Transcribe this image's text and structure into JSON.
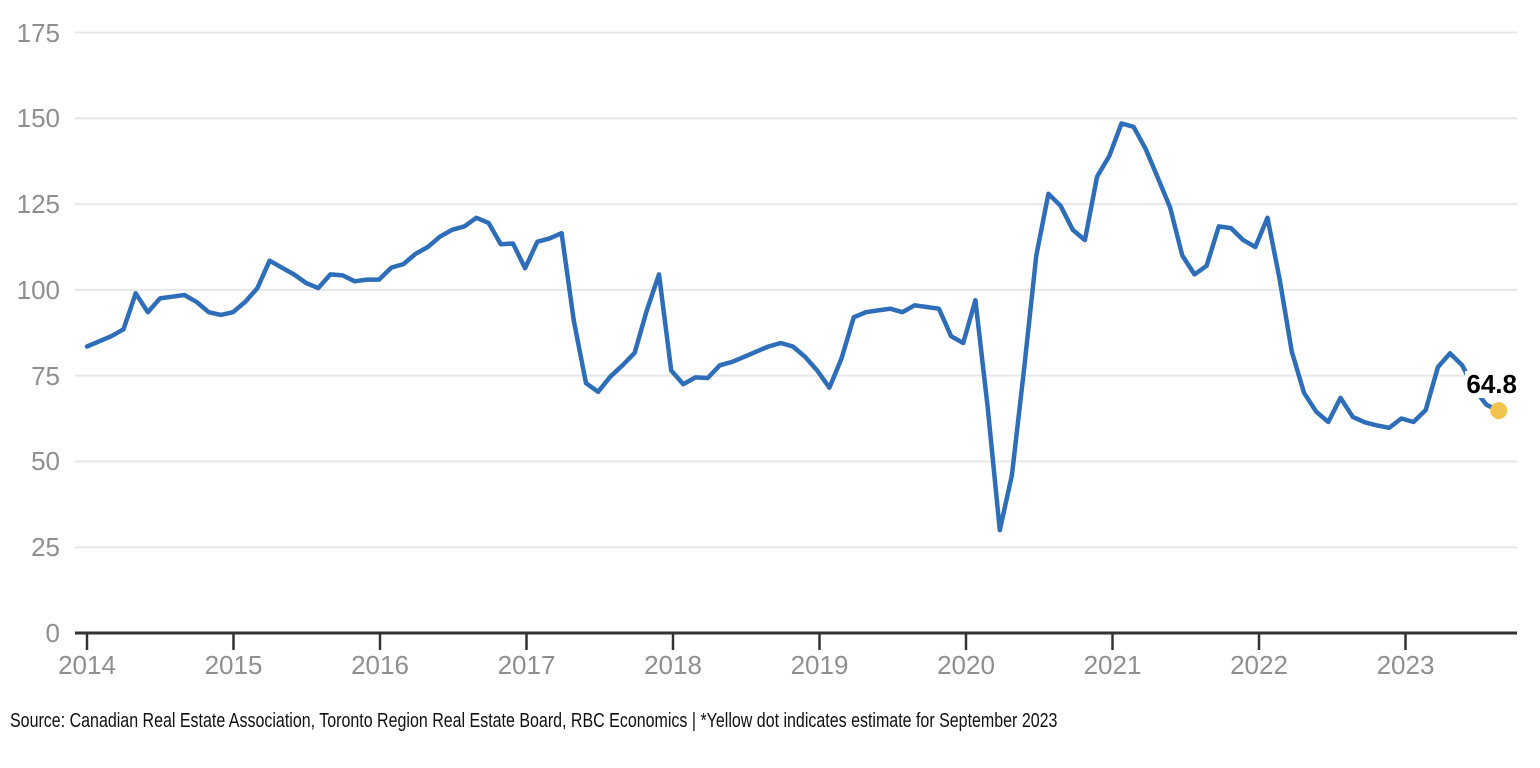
{
  "chart_data": {
    "type": "line",
    "title": "",
    "x_axis": {
      "tick_labels": [
        "2014",
        "2015",
        "2016",
        "2017",
        "2018",
        "2019",
        "2020",
        "2021",
        "2022",
        "2023"
      ],
      "frequency": "monthly",
      "start": "2014-01",
      "end": "2023-09"
    },
    "y_axis": {
      "tick_labels": [
        "175",
        "150",
        "125",
        "100",
        "75",
        "50",
        "25",
        "0"
      ],
      "ylim": [
        0,
        175
      ]
    },
    "grid": "horizontal",
    "legend": "none",
    "values": [
      83.5,
      85,
      86.5,
      88.5,
      99,
      93.5,
      97.5,
      98,
      98.5,
      96.5,
      93.5,
      92.7,
      93.5,
      96.5,
      100.5,
      108.5,
      106.5,
      104.5,
      102,
      100.5,
      104.5,
      104.2,
      102.5,
      103,
      103,
      106.5,
      107.5,
      110.5,
      112.5,
      115.5,
      117.5,
      118.5,
      121,
      119.5,
      113.3,
      113.5,
      106.3,
      114,
      115,
      116.5,
      91,
      72.8,
      70.3,
      74.7,
      78,
      81.6,
      94,
      104.5,
      76.5,
      72.5,
      74.5,
      74.3,
      78,
      79,
      80.5,
      82,
      83.5,
      84.5,
      83.5,
      80.5,
      76.5,
      71.5,
      80,
      92,
      93.5,
      94,
      94.5,
      93.5,
      95.5,
      95,
      94.5,
      86.5,
      84.5,
      97,
      66,
      30,
      46,
      77,
      110,
      128,
      124.5,
      117.5,
      114.5,
      133,
      139,
      148.5,
      147.5,
      141,
      132.5,
      124,
      110,
      104.5,
      107,
      118.5,
      118,
      114.5,
      112.5,
      121,
      103,
      82,
      70,
      64.5,
      61.5,
      68.5,
      63,
      61.4,
      60.5,
      59.8,
      62.5,
      61.5,
      65,
      77.5,
      81.5,
      78,
      71,
      66.5,
      64.8
    ],
    "annotation": {
      "label": "64.8",
      "value": 64.8,
      "applies_to": "September 2023",
      "marker": "yellow-dot"
    },
    "source_note": "Source: Canadian Real Estate Association, Toronto Region Real Estate Board, RBC Economics | *Yellow dot indicates estimate for September 2023"
  },
  "colors": {
    "line": "#2e6db8",
    "estimate_dot": "#f2c34e",
    "gridline": "#e7e7e7",
    "axis": "#333333",
    "tick_label": "#8f8f8f",
    "annotation_text": "#000000"
  }
}
